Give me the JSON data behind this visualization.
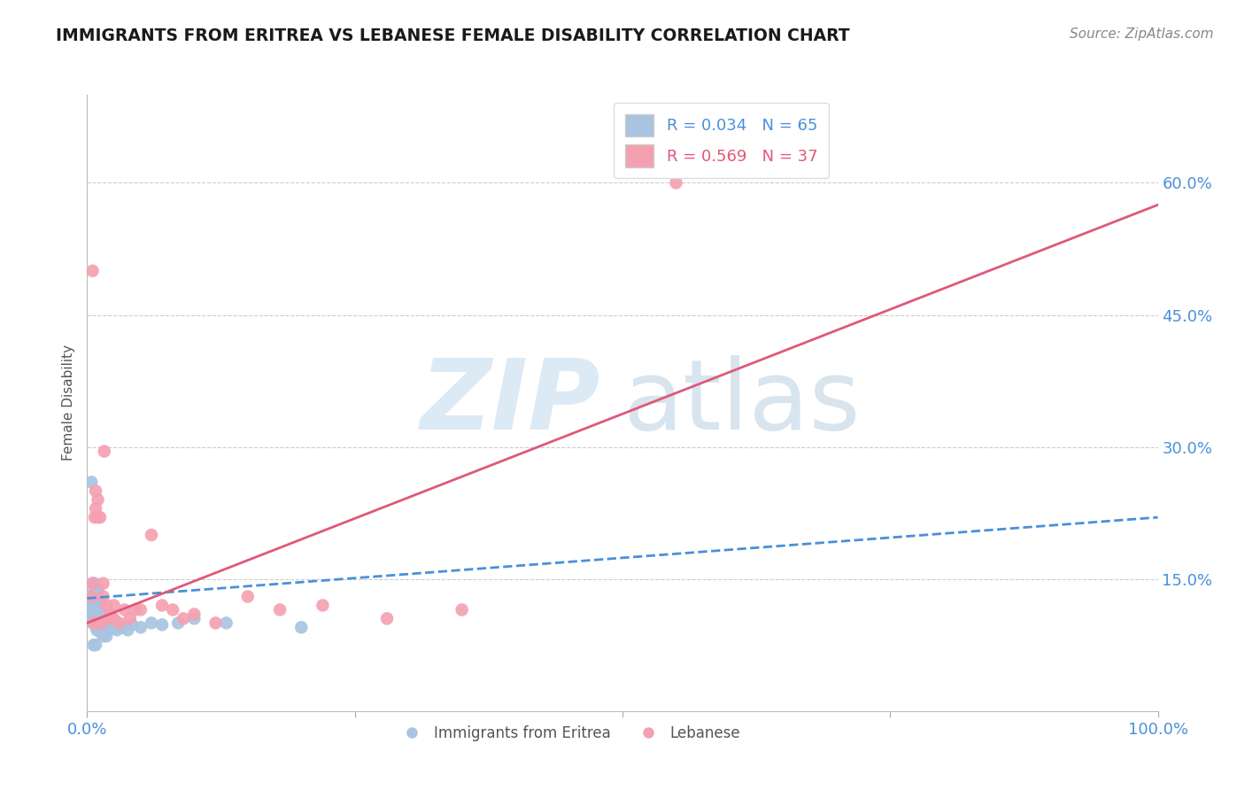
{
  "title": "IMMIGRANTS FROM ERITREA VS LEBANESE FEMALE DISABILITY CORRELATION CHART",
  "source": "Source: ZipAtlas.com",
  "ylabel": "Female Disability",
  "xlim": [
    0.0,
    1.0
  ],
  "ylim": [
    0.0,
    0.7
  ],
  "yticks": [
    0.15,
    0.3,
    0.45,
    0.6
  ],
  "ytick_labels": [
    "15.0%",
    "30.0%",
    "45.0%",
    "60.0%"
  ],
  "xticks": [
    0.0,
    0.25,
    0.5,
    0.75,
    1.0
  ],
  "xtick_labels": [
    "0.0%",
    "",
    "",
    "",
    "100.0%"
  ],
  "blue_R": 0.034,
  "blue_N": 65,
  "pink_R": 0.569,
  "pink_N": 37,
  "blue_color": "#a8c4e0",
  "pink_color": "#f4a0b0",
  "blue_line_color": "#4a90d9",
  "pink_line_color": "#e05878",
  "legend_label_blue": "Immigrants from Eritrea",
  "legend_label_pink": "Lebanese",
  "background_color": "#ffffff",
  "blue_line_x0": 0.0,
  "blue_line_y0": 0.128,
  "blue_line_x1": 1.0,
  "blue_line_y1": 0.22,
  "pink_line_x0": 0.0,
  "pink_line_y0": 0.1,
  "pink_line_x1": 1.0,
  "pink_line_y1": 0.575,
  "blue_scatter_x": [
    0.003,
    0.004,
    0.004,
    0.005,
    0.005,
    0.005,
    0.005,
    0.005,
    0.006,
    0.006,
    0.006,
    0.006,
    0.007,
    0.007,
    0.007,
    0.007,
    0.007,
    0.008,
    0.008,
    0.008,
    0.008,
    0.008,
    0.009,
    0.009,
    0.009,
    0.009,
    0.01,
    0.01,
    0.01,
    0.01,
    0.01,
    0.011,
    0.011,
    0.011,
    0.012,
    0.012,
    0.012,
    0.013,
    0.013,
    0.014,
    0.014,
    0.015,
    0.015,
    0.016,
    0.017,
    0.018,
    0.018,
    0.02,
    0.022,
    0.025,
    0.028,
    0.032,
    0.038,
    0.042,
    0.05,
    0.06,
    0.07,
    0.085,
    0.1,
    0.13,
    0.004,
    0.006,
    0.008,
    0.009,
    0.2
  ],
  "blue_scatter_y": [
    0.125,
    0.115,
    0.13,
    0.1,
    0.11,
    0.12,
    0.13,
    0.145,
    0.1,
    0.11,
    0.12,
    0.135,
    0.1,
    0.11,
    0.12,
    0.13,
    0.145,
    0.1,
    0.11,
    0.12,
    0.13,
    0.14,
    0.095,
    0.105,
    0.118,
    0.13,
    0.095,
    0.105,
    0.115,
    0.125,
    0.138,
    0.095,
    0.11,
    0.125,
    0.09,
    0.105,
    0.12,
    0.09,
    0.108,
    0.088,
    0.11,
    0.085,
    0.105,
    0.088,
    0.088,
    0.085,
    0.108,
    0.095,
    0.098,
    0.095,
    0.092,
    0.095,
    0.092,
    0.098,
    0.095,
    0.1,
    0.098,
    0.1,
    0.105,
    0.1,
    0.26,
    0.075,
    0.075,
    0.092,
    0.095
  ],
  "pink_scatter_x": [
    0.004,
    0.005,
    0.005,
    0.006,
    0.007,
    0.008,
    0.008,
    0.009,
    0.01,
    0.01,
    0.012,
    0.013,
    0.015,
    0.015,
    0.016,
    0.018,
    0.02,
    0.022,
    0.025,
    0.025,
    0.03,
    0.035,
    0.04,
    0.045,
    0.05,
    0.06,
    0.07,
    0.08,
    0.09,
    0.1,
    0.12,
    0.15,
    0.18,
    0.22,
    0.28,
    0.35,
    0.55
  ],
  "pink_scatter_y": [
    0.13,
    0.145,
    0.5,
    0.1,
    0.22,
    0.23,
    0.25,
    0.1,
    0.22,
    0.24,
    0.22,
    0.1,
    0.145,
    0.13,
    0.295,
    0.12,
    0.105,
    0.11,
    0.105,
    0.12,
    0.1,
    0.115,
    0.105,
    0.115,
    0.115,
    0.2,
    0.12,
    0.115,
    0.105,
    0.11,
    0.1,
    0.13,
    0.115,
    0.12,
    0.105,
    0.115,
    0.6
  ]
}
